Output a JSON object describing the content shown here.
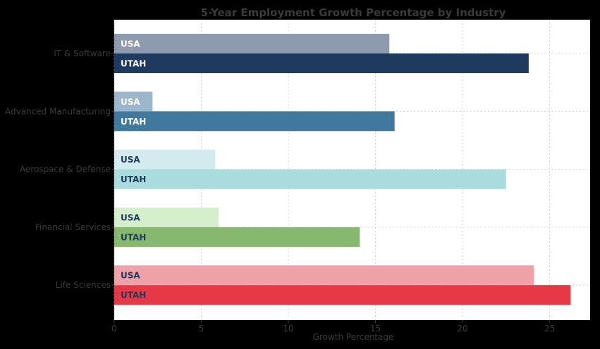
{
  "chart_data": {
    "type": "bar",
    "orientation": "horizontal",
    "title": "5-Year Employment Growth Percentage by Industry",
    "xlabel": "Growth Percentage",
    "ylabel": "",
    "xlim": [
      0,
      27.5
    ],
    "xticks": [
      0,
      5,
      10,
      15,
      20,
      25
    ],
    "grid": true,
    "categories": [
      "IT & Software",
      "Advanced Manufacturing",
      "Aerospace & Defense",
      "Financial Services",
      "Life Sciences"
    ],
    "series": [
      {
        "name": "USA",
        "values": [
          15.8,
          2.2,
          5.8,
          6.0,
          24.1
        ]
      },
      {
        "name": "UTAH",
        "values": [
          23.8,
          16.1,
          22.5,
          14.1,
          26.2
        ]
      }
    ],
    "colors": {
      "USA": [
        "#8e9aae",
        "#9cb6cc",
        "#d3ebee",
        "#d6efcb",
        "#eea2a8"
      ],
      "UTAH": [
        "#1f3a5f",
        "#41789d",
        "#a9dcdc",
        "#86b86e",
        "#e63946"
      ]
    },
    "label_colors": {
      "USA": [
        "#ffffff",
        "#ffffff",
        "#1f3a5f",
        "#1f3a5f",
        "#1f3a5f"
      ],
      "UTAH": [
        "#ffffff",
        "#ffffff",
        "#1f3a5f",
        "#1f3a5f",
        "#1f3a5f"
      ]
    }
  }
}
